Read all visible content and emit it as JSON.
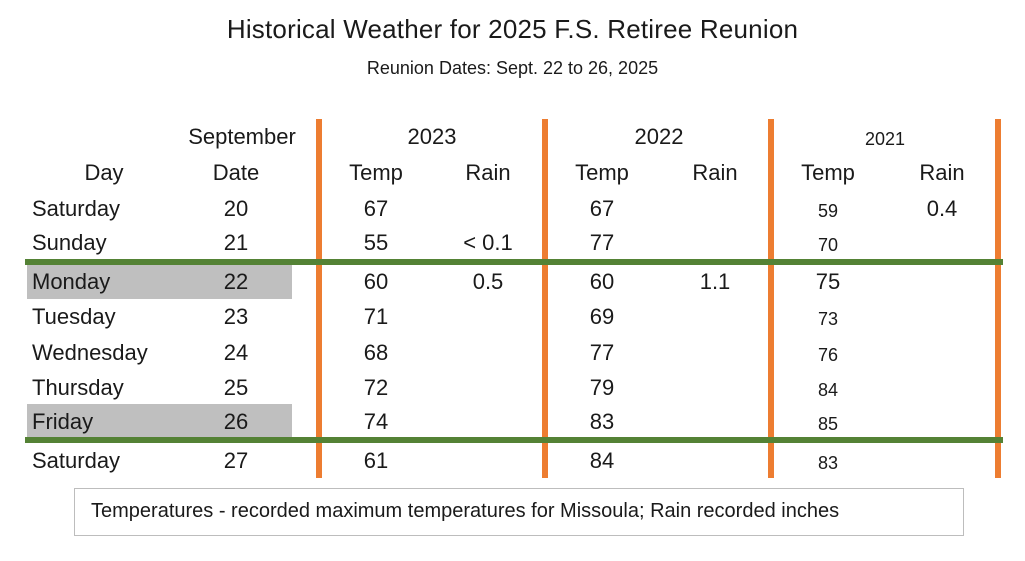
{
  "title": "Historical Weather for 2025 F.S. Retiree Reunion",
  "subtitle": "Reunion Dates: Sept. 22 to 26, 2025",
  "headers": {
    "month": "September",
    "day": "Day",
    "date": "Date",
    "years": [
      "2023",
      "2022",
      "2021"
    ],
    "temp": "Temp",
    "rain": "Rain"
  },
  "rows": [
    {
      "day": "Saturday",
      "date": "20",
      "t2023": "67",
      "r2023": "",
      "t2022": "67",
      "r2022": "",
      "t2021": "59",
      "r2021": "0.4"
    },
    {
      "day": "Sunday",
      "date": "21",
      "t2023": "55",
      "r2023": "< 0.1",
      "t2022": "77",
      "r2022": "",
      "t2021": "70",
      "r2021": ""
    },
    {
      "day": "Monday",
      "date": "22",
      "t2023": "60",
      "r2023": "0.5",
      "t2022": "60",
      "r2022": "1.1",
      "t2021": "75",
      "r2021": ""
    },
    {
      "day": "Tuesday",
      "date": "23",
      "t2023": "71",
      "r2023": "",
      "t2022": "69",
      "r2022": "",
      "t2021": "73",
      "r2021": ""
    },
    {
      "day": "Wednesday",
      "date": "24",
      "t2023": "68",
      "r2023": "",
      "t2022": "77",
      "r2022": "",
      "t2021": "76",
      "r2021": ""
    },
    {
      "day": "Thursday",
      "date": "25",
      "t2023": "72",
      "r2023": "",
      "t2022": "79",
      "r2022": "",
      "t2021": "84",
      "r2021": ""
    },
    {
      "day": "Friday",
      "date": "26",
      "t2023": "74",
      "r2023": "",
      "t2022": "83",
      "r2022": "",
      "t2021": "85",
      "r2021": ""
    },
    {
      "day": "Saturday",
      "date": "27",
      "t2023": "61",
      "r2023": "",
      "t2022": "84",
      "r2022": "",
      "t2021": "83",
      "r2021": ""
    }
  ],
  "highlighted_days": [
    "Monday",
    "Friday"
  ],
  "footer": "Temperatures - recorded maximum temperatures for Missoula; Rain recorded inches",
  "colors": {
    "column_divider": "#ed7d31",
    "reunion_boundary": "#548235",
    "highlight": "#bfbfbf"
  }
}
